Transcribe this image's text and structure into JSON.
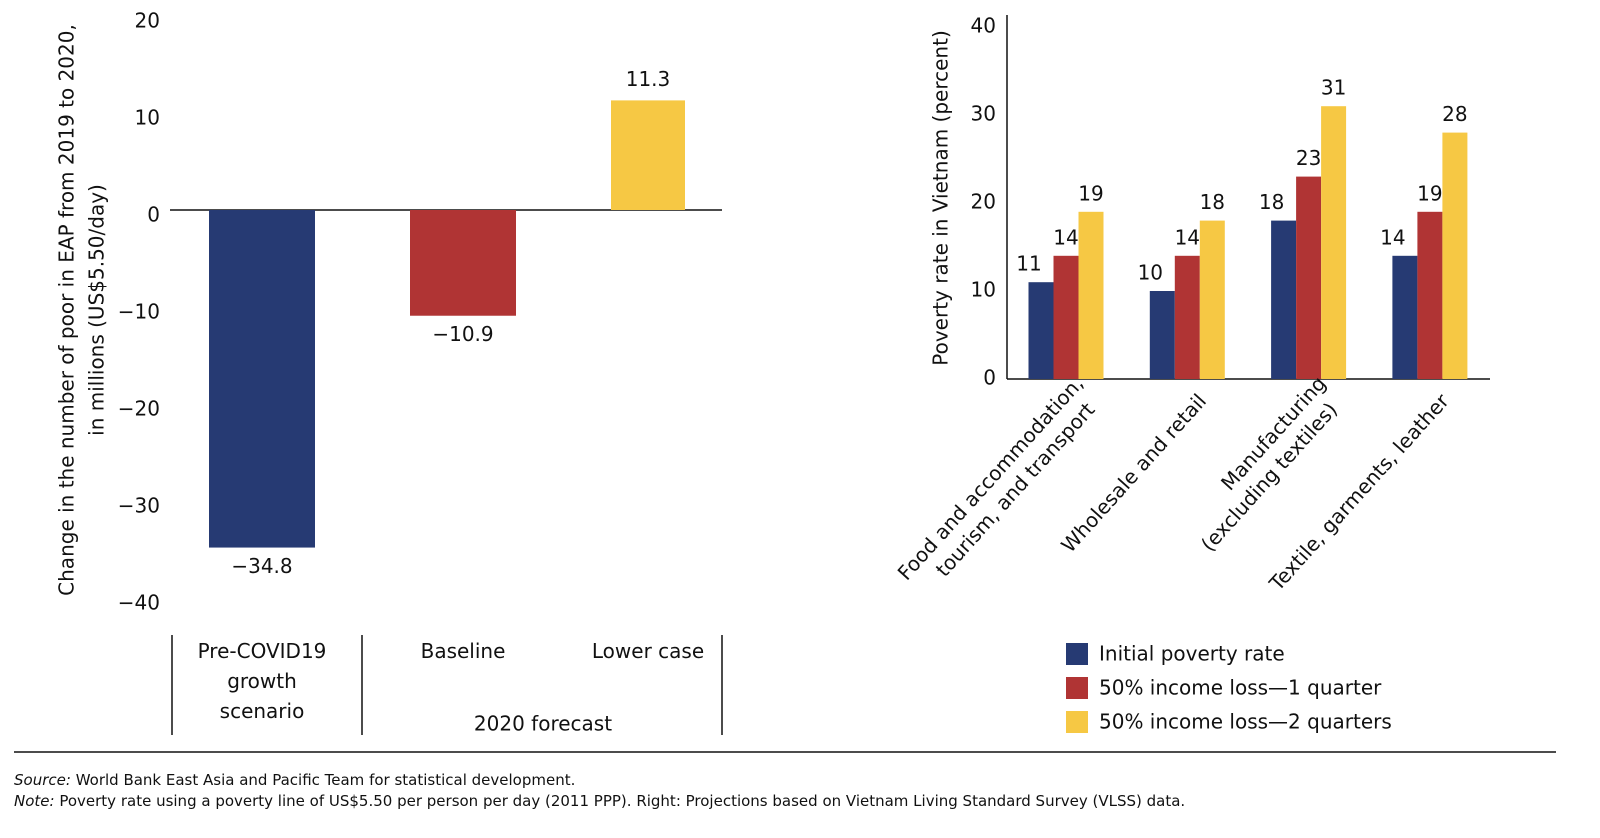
{
  "chart_data": [
    {
      "type": "bar",
      "y_label": [
        "Change in the number of poor in EAP from 2019 to 2020,",
        "in millions (US$5.50/day)"
      ],
      "categories": [
        "Pre-COVID19 growth scenario",
        "Baseline",
        "Lower case"
      ],
      "group_label": "2020 forecast",
      "values": [
        -34.8,
        -10.9,
        11.3
      ],
      "value_labels": [
        "−34.8",
        "−10.9",
        "11.3"
      ],
      "colors": [
        "#263a73",
        "#b03434",
        "#f6c844"
      ],
      "ylim": [
        -40,
        20
      ],
      "yticks": [
        {
          "value": -40,
          "label": "−40"
        },
        {
          "value": -30,
          "label": "−30"
        },
        {
          "value": -20,
          "label": "−20"
        },
        {
          "value": -10,
          "label": "−10"
        },
        0,
        10,
        20
      ]
    },
    {
      "type": "grouped_bar",
      "y_label": "Poverty rate in Vietnam (percent)",
      "categories": [
        [
          "Food and accommodation,",
          "tourism, and transport"
        ],
        [
          "Wholesale and retail"
        ],
        [
          "Manufacturing",
          "(excluding textiles)"
        ],
        [
          "Textile, garments, leather"
        ]
      ],
      "series": [
        {
          "name": "Initial poverty rate",
          "color": "#263a73",
          "values": [
            11,
            10,
            18,
            14
          ]
        },
        {
          "name": "50% income loss—1 quarter",
          "color": "#b03434",
          "values": [
            14,
            14,
            23,
            19
          ]
        },
        {
          "name": "50% income loss—2 quarters",
          "color": "#f6c844",
          "values": [
            19,
            18,
            31,
            28
          ]
        }
      ],
      "ylim": [
        0,
        40
      ],
      "yticks": [
        0,
        10,
        20,
        30,
        40
      ]
    }
  ],
  "footer": {
    "source_label": "Source:",
    "source": "World Bank East Asia and Pacific Team for statistical development.",
    "note_label": "Note:",
    "note": "Poverty rate using a poverty line of US$5.50 per person per day (2011 PPP). Right: Projections based on Vietnam Living Standard Survey (VLSS) data."
  }
}
